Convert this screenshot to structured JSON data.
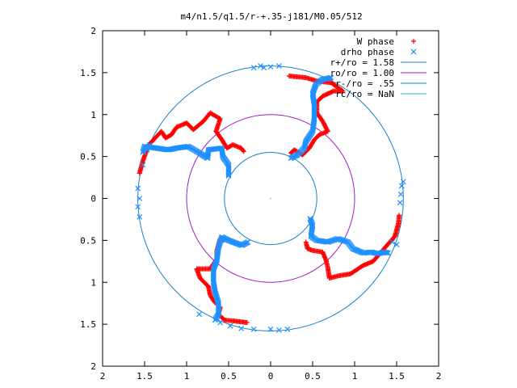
{
  "chart_data": {
    "type": "scatter",
    "title": "m4/n1.5/q1.5/r-+.35-j181/M0.05/512",
    "xlabel": "",
    "ylabel": "",
    "xlim": [
      -2,
      2
    ],
    "ylim": [
      -2,
      2
    ],
    "grid": false,
    "legend_position": "top-right",
    "x_ticks": [
      {
        "value": -2,
        "label": "2"
      },
      {
        "value": -1.5,
        "label": "1.5"
      },
      {
        "value": -1,
        "label": "1"
      },
      {
        "value": -0.5,
        "label": "0.5"
      },
      {
        "value": 0,
        "label": "0"
      },
      {
        "value": 0.5,
        "label": "0.5"
      },
      {
        "value": 1,
        "label": "1"
      },
      {
        "value": 1.5,
        "label": "1.5"
      },
      {
        "value": 2,
        "label": "2"
      }
    ],
    "y_ticks": [
      {
        "value": 2,
        "label": "2"
      },
      {
        "value": 1.5,
        "label": "1.5"
      },
      {
        "value": 1,
        "label": "1"
      },
      {
        "value": 0.5,
        "label": "0.5"
      },
      {
        "value": 0,
        "label": "0"
      },
      {
        "value": -0.5,
        "label": "0.5"
      },
      {
        "value": -1,
        "label": "1"
      },
      {
        "value": -1.5,
        "label": "1.5"
      },
      {
        "value": -2,
        "label": "2"
      }
    ],
    "series": [
      {
        "name": "W phase",
        "marker": "plus",
        "color": "#ff0000",
        "arms": [
          [
            [
              -0.32,
              0.56
            ],
            [
              -0.35,
              0.6
            ],
            [
              -0.45,
              0.64
            ],
            [
              -0.52,
              0.6
            ],
            [
              -0.58,
              0.7
            ],
            [
              -0.65,
              0.8
            ],
            [
              -0.6,
              0.95
            ],
            [
              -0.72,
              1.02
            ],
            [
              -0.8,
              0.92
            ],
            [
              -0.92,
              0.82
            ],
            [
              -1.0,
              0.9
            ],
            [
              -1.12,
              0.85
            ],
            [
              -1.18,
              0.76
            ],
            [
              -1.25,
              0.72
            ],
            [
              -1.3,
              0.8
            ],
            [
              -1.45,
              0.64
            ],
            [
              -1.48,
              0.56
            ],
            [
              -1.52,
              0.45
            ],
            [
              -1.56,
              0.3
            ]
          ],
          [
            [
              0.24,
              0.54
            ],
            [
              0.28,
              0.58
            ],
            [
              0.38,
              0.52
            ],
            [
              0.46,
              0.6
            ],
            [
              0.52,
              0.7
            ],
            [
              0.58,
              0.76
            ],
            [
              0.68,
              0.8
            ],
            [
              0.62,
              0.92
            ],
            [
              0.55,
              1.02
            ],
            [
              0.55,
              1.15
            ],
            [
              0.62,
              1.22
            ],
            [
              0.75,
              1.28
            ],
            [
              0.86,
              1.28
            ],
            [
              0.72,
              1.38
            ],
            [
              0.55,
              1.4
            ],
            [
              0.42,
              1.44
            ],
            [
              0.22,
              1.46
            ]
          ],
          [
            [
              0.42,
              -0.52
            ],
            [
              0.44,
              -0.6
            ],
            [
              0.5,
              -0.62
            ],
            [
              0.62,
              -0.64
            ],
            [
              0.66,
              -0.74
            ],
            [
              0.68,
              -0.82
            ],
            [
              0.7,
              -0.95
            ],
            [
              0.82,
              -0.92
            ],
            [
              0.95,
              -0.9
            ],
            [
              1.1,
              -0.8
            ],
            [
              1.22,
              -0.75
            ],
            [
              1.35,
              -0.6
            ],
            [
              1.48,
              -0.45
            ],
            [
              1.52,
              -0.3
            ],
            [
              1.53,
              -0.2
            ]
          ],
          [
            [
              -0.56,
              -0.5
            ],
            [
              -0.6,
              -0.48
            ],
            [
              -0.64,
              -0.62
            ],
            [
              -0.64,
              -0.72
            ],
            [
              -0.72,
              -0.84
            ],
            [
              -0.88,
              -0.84
            ],
            [
              -0.84,
              -0.95
            ],
            [
              -0.74,
              -1.05
            ],
            [
              -0.72,
              -1.15
            ],
            [
              -0.68,
              -1.22
            ],
            [
              -0.6,
              -1.3
            ],
            [
              -0.62,
              -1.38
            ],
            [
              -0.55,
              -1.45
            ],
            [
              -0.45,
              -1.46
            ],
            [
              -0.28,
              -1.48
            ]
          ]
        ]
      },
      {
        "name": "drho phase",
        "marker": "cross",
        "color": "#1e90ff",
        "arms": [
          [
            [
              -0.5,
              0.27
            ],
            [
              -0.5,
              0.4
            ],
            [
              -0.57,
              0.5
            ],
            [
              -0.58,
              0.6
            ],
            [
              -0.74,
              0.58
            ],
            [
              -0.75,
              0.48
            ],
            [
              -0.86,
              0.55
            ],
            [
              -0.98,
              0.62
            ],
            [
              -1.12,
              0.6
            ],
            [
              -1.22,
              0.58
            ],
            [
              -1.36,
              0.6
            ],
            [
              -1.5,
              0.62
            ],
            [
              -1.52,
              0.55
            ]
          ],
          [
            [
              0.24,
              0.48
            ],
            [
              0.32,
              0.52
            ],
            [
              0.4,
              0.6
            ],
            [
              0.42,
              0.68
            ],
            [
              0.5,
              0.8
            ],
            [
              0.52,
              0.95
            ],
            [
              0.52,
              1.12
            ],
            [
              0.5,
              1.25
            ],
            [
              0.54,
              1.36
            ],
            [
              0.62,
              1.42
            ],
            [
              0.72,
              1.44
            ]
          ],
          [
            [
              0.47,
              -0.24
            ],
            [
              0.5,
              -0.32
            ],
            [
              0.48,
              -0.45
            ],
            [
              0.55,
              -0.5
            ],
            [
              0.68,
              -0.52
            ],
            [
              0.8,
              -0.48
            ],
            [
              0.92,
              -0.52
            ],
            [
              0.98,
              -0.6
            ],
            [
              1.1,
              -0.65
            ],
            [
              1.2,
              -0.64
            ],
            [
              1.28,
              -0.66
            ],
            [
              1.35,
              -0.64
            ],
            [
              1.4,
              -0.65
            ]
          ],
          [
            [
              -0.27,
              -0.52
            ],
            [
              -0.34,
              -0.56
            ],
            [
              -0.5,
              -0.5
            ],
            [
              -0.58,
              -0.46
            ],
            [
              -0.62,
              -0.58
            ],
            [
              -0.64,
              -0.74
            ],
            [
              -0.68,
              -0.84
            ],
            [
              -0.68,
              -1.0
            ],
            [
              -0.66,
              -1.12
            ],
            [
              -0.62,
              -1.25
            ],
            [
              -0.62,
              -1.38
            ],
            [
              -0.66,
              -1.45
            ]
          ]
        ],
        "scatter": [
          [
            -1.56,
            0.0
          ],
          [
            -1.58,
            -0.1
          ],
          [
            -1.58,
            0.12
          ],
          [
            -1.56,
            -0.22
          ],
          [
            -1.52,
            0.4
          ],
          [
            -1.47,
            0.58
          ],
          [
            -1.44,
            0.64
          ],
          [
            -0.2,
            1.56
          ],
          [
            -0.12,
            1.58
          ],
          [
            -0.08,
            1.56
          ],
          [
            0.0,
            1.57
          ],
          [
            0.1,
            1.58
          ],
          [
            1.55,
            0.05
          ],
          [
            1.56,
            0.15
          ],
          [
            1.54,
            -0.05
          ],
          [
            1.58,
            0.2
          ],
          [
            1.45,
            -0.52
          ],
          [
            1.5,
            -0.55
          ],
          [
            -0.6,
            -1.48
          ],
          [
            -0.48,
            -1.52
          ],
          [
            -0.35,
            -1.55
          ],
          [
            -0.2,
            -1.56
          ],
          [
            0.0,
            -1.56
          ],
          [
            0.1,
            -1.57
          ],
          [
            0.2,
            -1.56
          ],
          [
            -0.85,
            -1.38
          ]
        ]
      },
      {
        "name": "r+/ro = 1.58",
        "type": "circle",
        "radius": 1.58,
        "color": "#1a7fc9"
      },
      {
        "name": "ro/ro = 1.00",
        "type": "circle",
        "radius": 1.0,
        "color": "#a020c0"
      },
      {
        "name": "r-/ro = .55",
        "type": "circle",
        "radius": 0.55,
        "color": "#1a7fc9"
      },
      {
        "name": "rc/ro = NaN",
        "type": "circle",
        "radius": null,
        "color": "#20c0c0"
      }
    ]
  }
}
